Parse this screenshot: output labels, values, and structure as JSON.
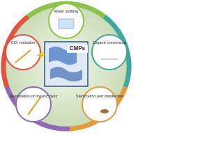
{
  "center": {
    "label": "CMPs"
  },
  "nodes": [
    {
      "label": "Water splitting"
    },
    {
      "label": "Organic conversion"
    },
    {
      "label": "Sterilization and disinfection"
    },
    {
      "label": "Degradation of organic dyes"
    },
    {
      "label": "CO₂ reduction"
    }
  ]
}
